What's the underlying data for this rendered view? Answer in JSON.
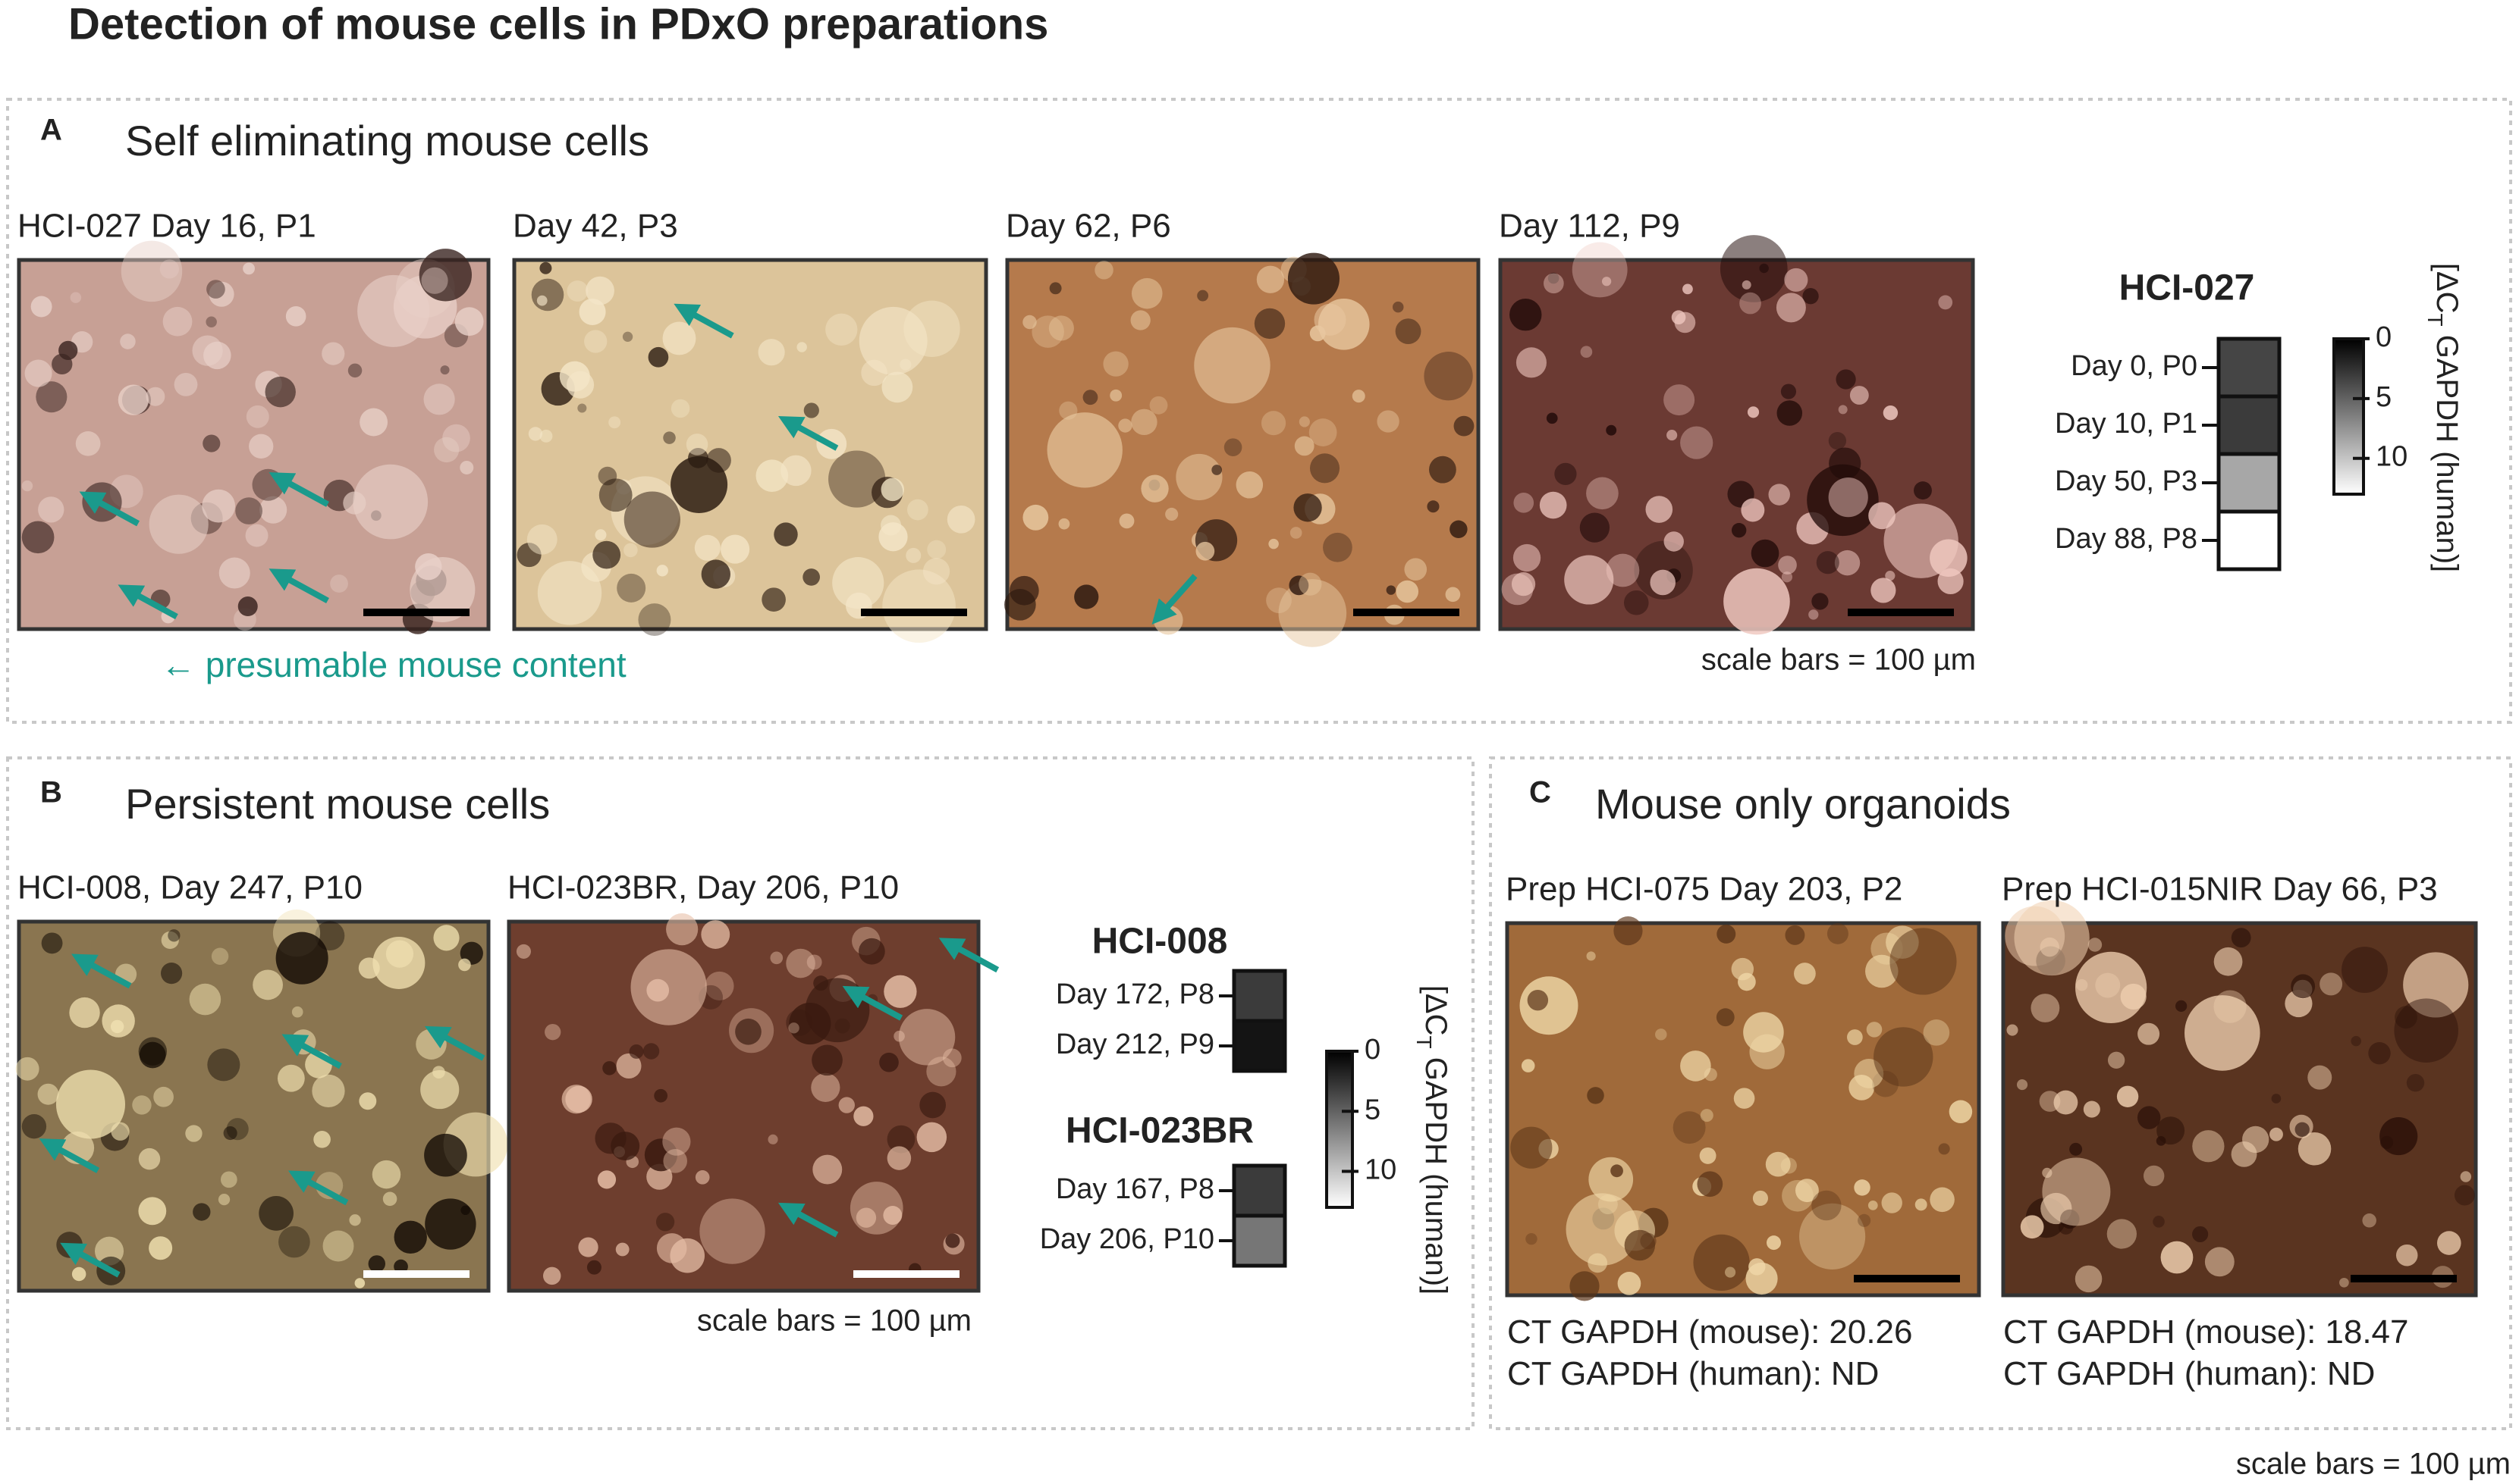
{
  "title": "Detection of mouse cells in PDxO preparations",
  "panels": [
    {
      "label": "A",
      "heading": "Self eliminating mouse cells",
      "images": [
        {
          "caption": "HCI-027 Day 16, P1"
        },
        {
          "caption": "Day 42, P3"
        },
        {
          "caption": "Day 62, P6"
        },
        {
          "caption": "Day 112, P9"
        }
      ],
      "legend": "← presumable mouse content",
      "scale_note": "scale bars = 100 µm",
      "heatmaps": [
        {
          "name": "HCI-027",
          "rows": [
            {
              "label": "Day 0, P0",
              "value": 3.5
            },
            {
              "label": "Day 10, P1",
              "value": 3
            },
            {
              "label": "Day 50, P3",
              "value": 8.5
            },
            {
              "label": "Day 88, P8",
              "value": 13
            }
          ]
        }
      ],
      "colorbar": {
        "range": [
          0,
          13
        ],
        "ticks": [
          0,
          5,
          10
        ],
        "label": [
          "[ΔC",
          "T",
          " GAPDH (human)]"
        ]
      }
    },
    {
      "label": "B",
      "heading": "Persistent mouse cells",
      "images": [
        {
          "caption": "HCI-008, Day 247, P10"
        },
        {
          "caption": "HCI-023BR, Day 206, P10"
        }
      ],
      "scale_note": "scale bars = 100 µm",
      "heatmaps": [
        {
          "name": "HCI-008",
          "rows": [
            {
              "label": "Day 172, P8",
              "value": 3
            },
            {
              "label": "Day 212, P9",
              "value": 1
            }
          ]
        },
        {
          "name": "HCI-023BR",
          "rows": [
            {
              "label": "Day 167, P8",
              "value": 3
            },
            {
              "label": "Day 206, P10",
              "value": 6
            }
          ]
        }
      ],
      "colorbar": {
        "range": [
          0,
          13
        ],
        "ticks": [
          0,
          5,
          10
        ],
        "label": [
          "[ΔC",
          "T",
          " GAPDH (human)]"
        ]
      }
    },
    {
      "label": "C",
      "heading": "Mouse only organoids",
      "images": [
        {
          "caption": "Prep HCI-075 Day 203, P2",
          "measurements": [
            {
              "label": "CT GAPDH (mouse):",
              "value": 20.26
            },
            {
              "label": "CT GAPDH (human):",
              "value": "ND"
            }
          ]
        },
        {
          "caption": "Prep HCI-015NIR Day 66, P3",
          "measurements": [
            {
              "label": "CT GAPDH (mouse):",
              "value": 18.47
            },
            {
              "label": "CT GAPDH (human):",
              "value": "ND"
            }
          ]
        }
      ],
      "scale_note": "scale bars = 100 µm"
    }
  ]
}
